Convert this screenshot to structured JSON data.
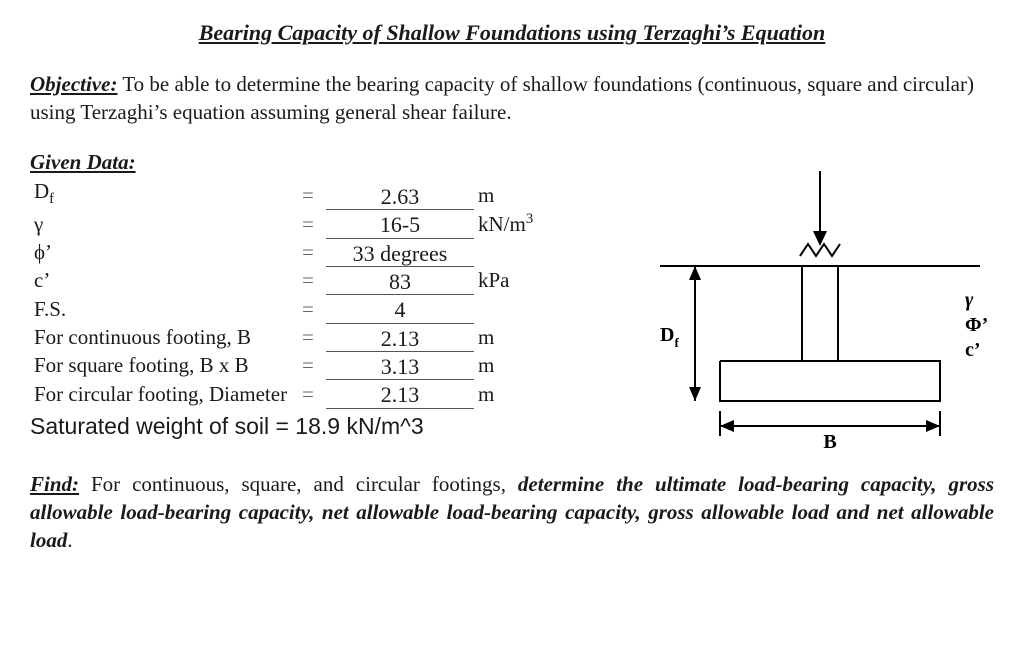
{
  "title": "Bearing Capacity of Shallow Foundations using Terzaghi’s Equation",
  "objective": {
    "label": "Objective:",
    "text": " To be able to determine the bearing capacity of shallow foundations (continuous, square and circular) using Terzaghi’s equation assuming general shear failure."
  },
  "given": {
    "label": "Given Data:",
    "rows": [
      {
        "sym_html": "D<span class='sub'>f</span>",
        "val": "2.63",
        "unit": "m"
      },
      {
        "sym_html": "γ",
        "val": "16-5",
        "unit_html": "kN/m<span class='sup'>3</span>"
      },
      {
        "sym_html": "ϕ’",
        "val": "33 degrees",
        "unit": ""
      },
      {
        "sym_html": "c’",
        "val": "83",
        "unit": "kPa"
      },
      {
        "sym_html": "F.S.",
        "val": "4",
        "unit": ""
      },
      {
        "sym_html": "For continuous footing, B",
        "val": "2.13",
        "unit": "m"
      },
      {
        "sym_html": "For square footing, B x B",
        "val": "3.13",
        "unit": "m"
      },
      {
        "sym_html": "For circular footing, Diameter",
        "val": "2.13",
        "unit": "m"
      }
    ],
    "saturated": "Saturated weight of soil = 18.9 kN/m^3"
  },
  "find": {
    "label": "Find:",
    "lead": " For continuous, square, and circular footings, ",
    "bold": "determine the ultimate load-bearing capacity, gross allowable load-bearing capacity, net allowable load-bearing capacity, gross allowable load and net allowable load"
  },
  "diagram": {
    "stroke": "#000000",
    "stroke_width": 2,
    "labels": {
      "Df": "D",
      "Df_sub": "f",
      "B": "B",
      "gamma": "γ",
      "phi": "Φ’",
      "c": "c’"
    },
    "label_fontsize": 20
  }
}
